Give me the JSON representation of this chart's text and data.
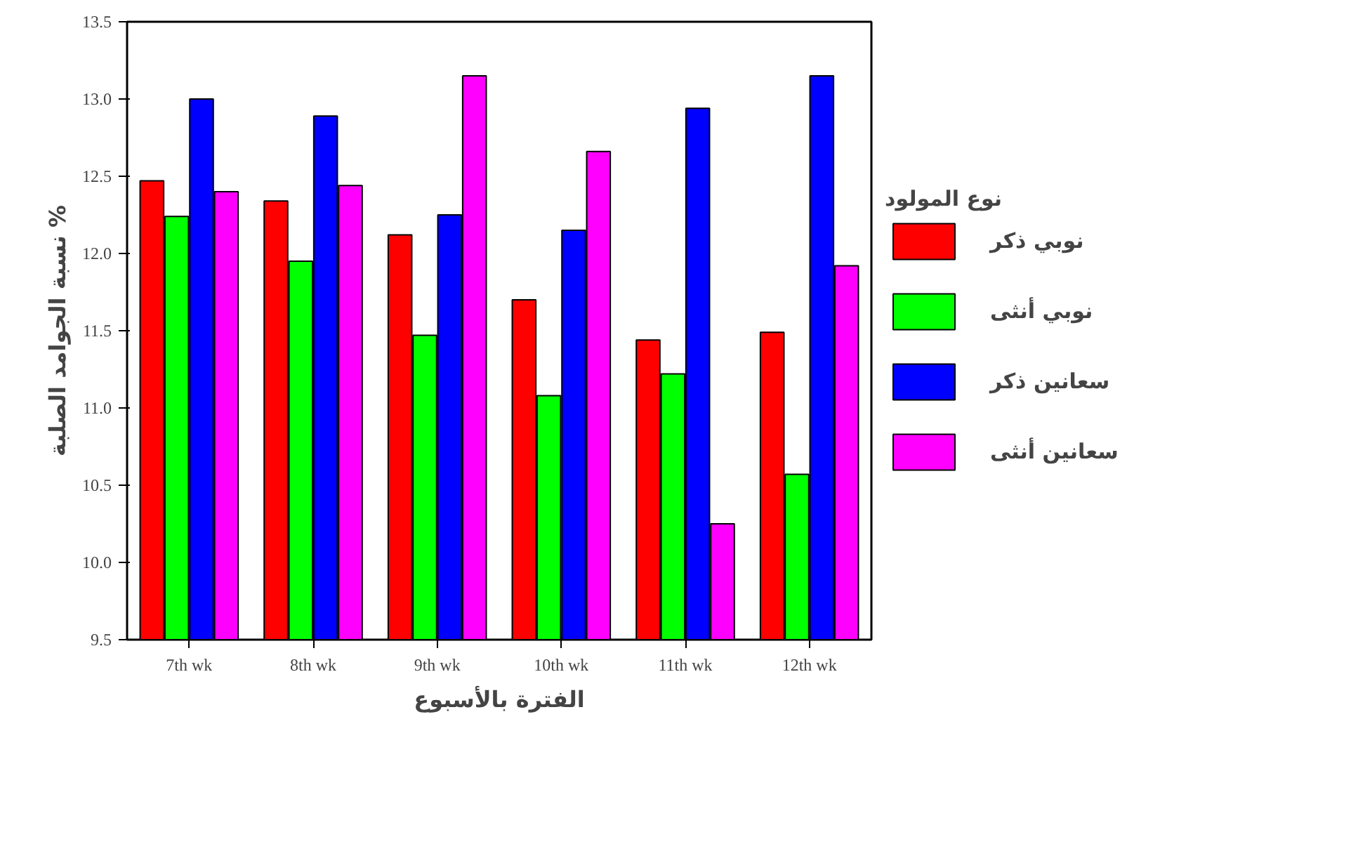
{
  "chart_data": {
    "type": "bar",
    "xlabel": "الفترة بالأسبوع",
    "ylabel": "نسبة الجوامد الصلبة %",
    "legend_title": "نوع المولود",
    "categories": [
      "7th wk",
      "8th wk",
      "9th wk",
      "10th wk",
      "11th wk",
      "12th wk"
    ],
    "series": [
      {
        "name": "نوبي ذكر",
        "color": "#ff0000",
        "values": [
          12.47,
          12.34,
          12.12,
          11.7,
          11.44,
          11.49
        ]
      },
      {
        "name": "نوبي أنثى",
        "color": "#00ff00",
        "values": [
          12.24,
          11.95,
          11.47,
          11.08,
          11.22,
          10.57
        ]
      },
      {
        "name": "سعانين ذكر",
        "color": "#0000ff",
        "values": [
          13.0,
          12.89,
          12.25,
          12.15,
          12.94,
          13.15
        ]
      },
      {
        "name": "سعانين أنثى",
        "color": "#ff00ff",
        "values": [
          12.4,
          12.44,
          13.15,
          12.66,
          10.25,
          11.92
        ]
      }
    ],
    "ylim": [
      9.5,
      13.5
    ],
    "yticks": [
      9.5,
      {
        "value": 10,
        "label": "10.0"
      },
      10.5,
      {
        "value": 11,
        "label": "11.0"
      },
      11.5,
      {
        "value": 12,
        "label": "12.0"
      },
      12.5,
      {
        "value": 13,
        "label": "13.0"
      },
      13.5
    ],
    "grid": false,
    "legend": "right"
  }
}
